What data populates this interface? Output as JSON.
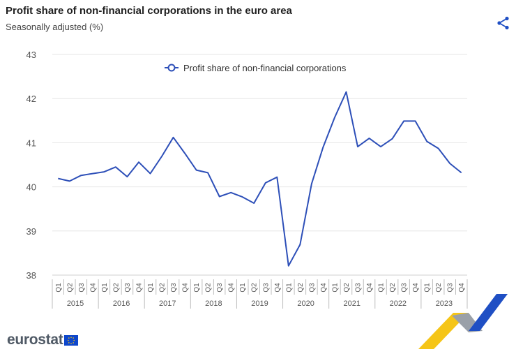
{
  "header": {
    "title": "Profit share of non-financial corporations in the euro area",
    "subtitle": "Seasonally adjusted (%)"
  },
  "brand": {
    "logo_text": "eurostat",
    "text_color": "#505a66",
    "flag_color": "#0e47cb",
    "accent_blue": "#1f4fc4",
    "accent_yellow": "#f5c518"
  },
  "chart_data": {
    "type": "line",
    "title": "Profit share of non-financial corporations in the euro area",
    "subtitle": "Seasonally adjusted (%)",
    "xlabel": "",
    "ylabel": "",
    "ylim": [
      38,
      43
    ],
    "yticks": [
      "43",
      "42",
      "41",
      "40",
      "39",
      "38"
    ],
    "grid": true,
    "legend": "top-center",
    "quarters": [
      "Q1",
      "Q2",
      "Q3",
      "Q4"
    ],
    "years": [
      "2015",
      "2016",
      "2017",
      "2018",
      "2019",
      "2020",
      "2021",
      "2022",
      "2023"
    ],
    "series": [
      {
        "name": "Profit share of non-financial corporations",
        "color": "#2d4fb8",
        "values": [
          40.19,
          40.13,
          40.26,
          40.3,
          40.34,
          40.45,
          40.23,
          40.56,
          40.3,
          40.69,
          41.12,
          40.76,
          40.38,
          40.32,
          39.78,
          39.87,
          39.77,
          39.63,
          40.09,
          40.22,
          38.21,
          38.69,
          40.07,
          40.9,
          41.57,
          42.15,
          40.91,
          41.1,
          40.91,
          41.09,
          41.49,
          41.49,
          41.03,
          40.87,
          40.53,
          40.32
        ]
      }
    ]
  }
}
